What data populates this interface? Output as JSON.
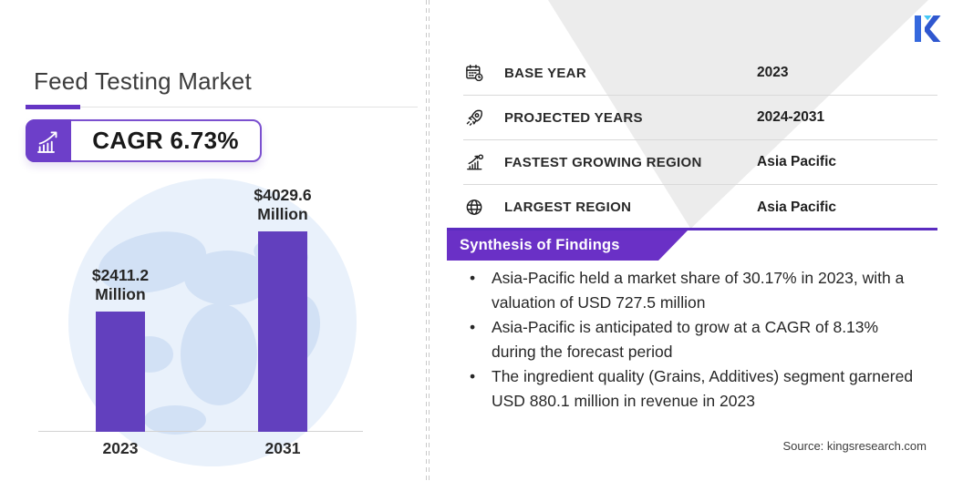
{
  "left_panel": {
    "title": "Feed Testing Market",
    "cagr_badge": {
      "icon": "growth-arrow-chart-icon",
      "label": "CAGR 6.73%"
    }
  },
  "chart_data": {
    "type": "bar",
    "title": "Feed Testing Market",
    "categories": [
      "2023",
      "2031"
    ],
    "values": [
      2411.2,
      4029.6
    ],
    "value_labels": [
      "$2411.2",
      "$4029.6"
    ],
    "unit": "Million",
    "ylim": [
      0,
      4300
    ],
    "xlabel": "",
    "ylabel": "",
    "grid": false,
    "legend": false,
    "bar_color": "#6240be",
    "background": "light-blue world map globe"
  },
  "right_panel": {
    "stats": [
      {
        "icon": "calendar-clock-icon",
        "label": "BASE YEAR",
        "value": "2023"
      },
      {
        "icon": "rocket-icon",
        "label": "PROJECTED YEARS",
        "value": "2024-2031"
      },
      {
        "icon": "growth-chart-icon",
        "label": "FASTEST GROWING REGION",
        "value": "Asia Pacific"
      },
      {
        "icon": "globe-icon",
        "label": "LARGEST REGION",
        "value": "Asia Pacific"
      }
    ],
    "findings": {
      "header": "Synthesis of Findings",
      "bullets": [
        "Asia-Pacific held a market share of 30.17% in 2023, with a valuation of USD 727.5 million",
        "Asia-Pacific is anticipated to grow at a CAGR of 8.13% during the forecast period",
        "The ingredient quality (Grains, Additives) segment garnered USD 880.1 million in revenue in 2023"
      ]
    },
    "source_note": "Source:  kingsresearch.com"
  },
  "brand": {
    "logo_letter": "K"
  },
  "colors": {
    "accent_purple": "#6a30c6",
    "bar_purple": "#6240be",
    "banner_line_purple": "#5b2cc0",
    "triangle_gray": "#ececec",
    "map_light_blue": "#d8e6f7",
    "logo_blue": "#3568dd",
    "logo_dark_blue": "#2f57cf",
    "logo_cyan": "#45c8f5"
  }
}
